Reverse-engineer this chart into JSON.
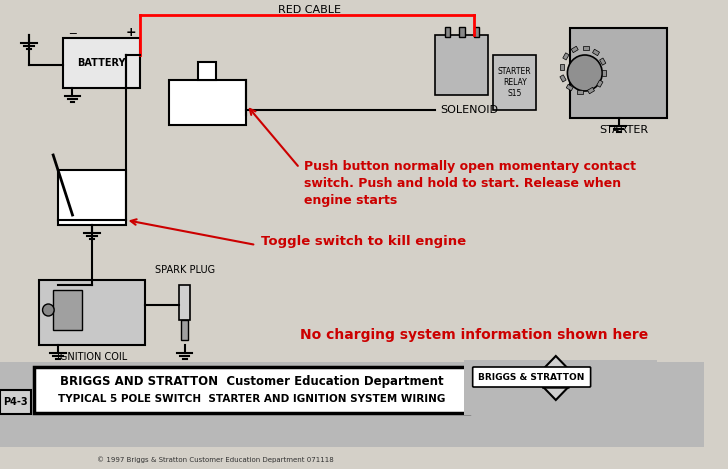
{
  "bg_color": "#d4d0c8",
  "diagram_bg": "#d4d0c8",
  "title_line1": "BRIGGS AND STRATTON  Customer Education Department",
  "title_line2": "TYPICAL 5 POLE SWITCH  STARTER AND IGNITION SYSTEM WIRING",
  "page_label": "P4-3",
  "copyright": "© 1997 Briggs & Stratton Customer Education Department 071118",
  "red_cable_label": "RED CABLE",
  "solenoid_label": "SOLENOID",
  "starter_label": "STARTER",
  "starter_relay_label": "STARTER\nRELAY\nS15",
  "battery_label": "BATTERY",
  "spark_plug_label": "SPARK PLUG",
  "ignition_coil_label": "IGNITION COIL",
  "annotation1": "Push button normally open momentary contact\nswitch. Push and hold to start. Release when\nengine starts",
  "annotation2": "Toggle switch to kill engine",
  "annotation3": "No charging system information shown here",
  "annotation1_color": "#cc0000",
  "annotation2_color": "#cc0000",
  "annotation3_color": "#cc0000",
  "line_color": "#000000",
  "wire_color": "#000000",
  "component_fill": "#c8c8c8",
  "footer_bg": "#c8c8c8",
  "briggs_logo_bg": "#c8c8c8"
}
